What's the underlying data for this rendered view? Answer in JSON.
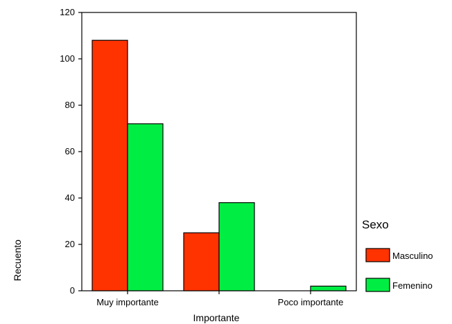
{
  "chart_data": {
    "type": "bar",
    "categories": [
      "Muy importante",
      "Importante",
      "Poco importante"
    ],
    "category_tick_labels": [
      "Muy importante",
      "",
      "Poco importante"
    ],
    "xlabel": "Importante",
    "ylabel": "Recuento",
    "ylim": [
      0,
      120
    ],
    "yticks": [
      0,
      20,
      40,
      60,
      80,
      100,
      120
    ],
    "grid": false,
    "legend": {
      "title": "Sexo",
      "position": "right"
    },
    "series": [
      {
        "name": "Masculino",
        "color": "#ff3300",
        "values": [
          108,
          25,
          0
        ]
      },
      {
        "name": "Femenino",
        "color": "#00ee44",
        "values": [
          72,
          38,
          2
        ]
      }
    ]
  }
}
